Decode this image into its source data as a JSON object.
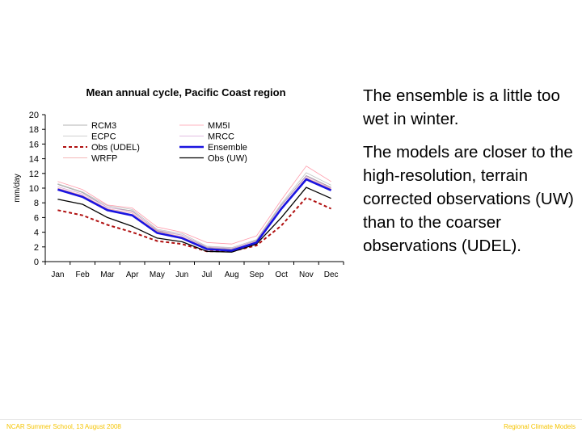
{
  "slide": {
    "bullets": [
      "The ensemble is a little too wet in winter.",
      "The models are closer to the high-resolution, terrain corrected observations (UW) than to the coarser observations (UDEL)."
    ],
    "footer_left": "NCAR Summer School, 13 August 2008",
    "footer_right": "Regional Climate Models"
  },
  "colors": {
    "footer": "#f5c400"
  },
  "chart_data": {
    "type": "line",
    "title": "Mean annual cycle, Pacific Coast region",
    "xlabel": "",
    "ylabel": "mm/day",
    "categories": [
      "Jan",
      "Feb",
      "Mar",
      "Apr",
      "May",
      "Jun",
      "Jul",
      "Aug",
      "Sep",
      "Oct",
      "Nov",
      "Dec"
    ],
    "ylim": [
      0,
      20
    ],
    "yticks": [
      0,
      2,
      4,
      6,
      8,
      10,
      12,
      14,
      16,
      18,
      20
    ],
    "grid": false,
    "legend_position": "top",
    "series": [
      {
        "name": "RCM3",
        "color": "#9a9a9a",
        "style": "thin",
        "values": [
          10.5,
          9.4,
          7.4,
          6.9,
          4.2,
          3.6,
          1.9,
          1.7,
          2.9,
          7.7,
          11.7,
          10.1
        ]
      },
      {
        "name": "MM5I",
        "color": "#ff9aaa",
        "style": "thin",
        "values": [
          10.9,
          9.8,
          7.7,
          7.3,
          4.7,
          4.0,
          2.6,
          2.4,
          3.5,
          8.4,
          13.0,
          10.9
        ]
      },
      {
        "name": "ECPC",
        "color": "#c0c0c0",
        "style": "thin",
        "values": [
          10.6,
          9.5,
          7.6,
          7.1,
          4.4,
          3.8,
          2.1,
          1.9,
          3.0,
          7.9,
          12.1,
          10.4
        ]
      },
      {
        "name": "MRCC",
        "color": "#d8a8d8",
        "style": "thin",
        "values": [
          10.2,
          9.2,
          7.4,
          6.8,
          4.3,
          3.6,
          2.0,
          1.8,
          2.8,
          7.6,
          11.6,
          10.0
        ]
      },
      {
        "name": "Obs (UDEL)",
        "color": "#b01010",
        "style": "dash",
        "values": [
          7.0,
          6.3,
          5.0,
          4.0,
          2.8,
          2.4,
          1.4,
          1.4,
          2.2,
          4.9,
          8.7,
          7.2
        ]
      },
      {
        "name": "Ensemble",
        "color": "#1a14e0",
        "style": "thick",
        "values": [
          9.8,
          8.8,
          7.0,
          6.3,
          3.9,
          3.2,
          1.7,
          1.5,
          2.6,
          7.2,
          11.2,
          9.7
        ]
      },
      {
        "name": "WRFP",
        "color": "#f2a0a0",
        "style": "thin",
        "values": [
          10.0,
          9.0,
          7.2,
          6.6,
          4.1,
          3.4,
          1.8,
          1.6,
          2.7,
          7.3,
          11.4,
          9.9
        ]
      },
      {
        "name": "Obs (UW)",
        "color": "#000000",
        "style": "medium",
        "values": [
          8.5,
          7.8,
          6.0,
          4.8,
          3.2,
          2.7,
          1.4,
          1.3,
          2.4,
          6.0,
          10.1,
          8.6
        ]
      }
    ]
  }
}
